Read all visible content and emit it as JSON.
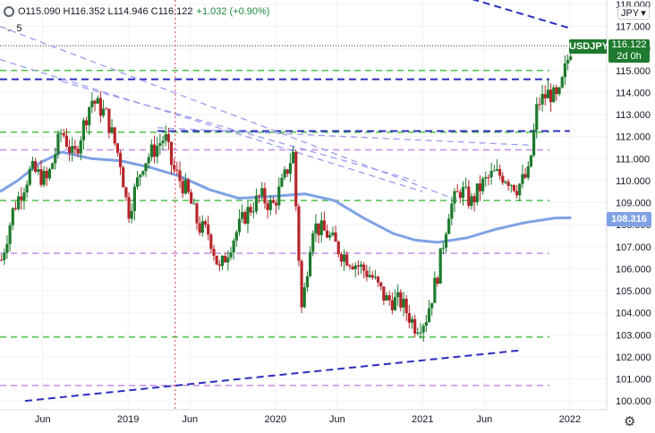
{
  "header": {
    "ohlc_text": "O115.090 H116.352 L114.946 C116.122",
    "change_text": "+1.032 (+0.90%)",
    "study_count": "5"
  },
  "currency_button": "JPY",
  "symbol_tag": "USDJPY",
  "price_tag": {
    "price": "116.122",
    "time": "2d 0h"
  },
  "ma_tag": "108.316",
  "colors": {
    "up": "#1e7a2e",
    "down": "#b7262b",
    "ma": "#7fa2e6",
    "green_level": "#4fc04a",
    "purple_level": "#c88ee8",
    "blue_line": "#2b2fbf",
    "light_blue_line": "#9b9cf0"
  },
  "chart_data": {
    "type": "candlestick",
    "symbol": "USDJPY",
    "timeframe": "weekly",
    "y_ticks": [
      "118.000",
      "117.000",
      "116.000",
      "115.000",
      "114.000",
      "113.000",
      "112.000",
      "111.000",
      "110.000",
      "109.000",
      "108.000",
      "107.000",
      "106.000",
      "105.000",
      "104.000",
      "103.000",
      "102.000",
      "101.000",
      "100.000"
    ],
    "ylim": [
      99.6,
      118.2
    ],
    "x_ticks": [
      {
        "label": "Jun",
        "t": 2018.42
      },
      {
        "label": "2019",
        "t": 2019.0
      },
      {
        "label": "Jun",
        "t": 2019.42
      },
      {
        "label": "2020",
        "t": 2020.0
      },
      {
        "label": "Jun",
        "t": 2020.42
      },
      {
        "label": "2021",
        "t": 2021.0
      },
      {
        "label": "Jun",
        "t": 2021.42
      },
      {
        "label": "2022",
        "t": 2022.0
      }
    ],
    "xlim": [
      2018.13,
      2022.25
    ],
    "last_price": 116.122,
    "moving_average_last": 108.316,
    "close_path": [
      [
        2018.14,
        106.4
      ],
      [
        2018.22,
        108.7
      ],
      [
        2018.34,
        110.5
      ],
      [
        2018.45,
        110.0
      ],
      [
        2018.55,
        112.3
      ],
      [
        2018.63,
        111.0
      ],
      [
        2018.75,
        113.7
      ],
      [
        2018.85,
        113.0
      ],
      [
        2018.95,
        110.8
      ],
      [
        2019.0,
        108.5
      ],
      [
        2019.1,
        110.8
      ],
      [
        2019.2,
        111.6
      ],
      [
        2019.25,
        112.0
      ],
      [
        2019.3,
        110.6
      ],
      [
        2019.4,
        109.5
      ],
      [
        2019.48,
        107.9
      ],
      [
        2019.55,
        107.6
      ],
      [
        2019.62,
        105.9
      ],
      [
        2019.7,
        107.2
      ],
      [
        2019.8,
        108.5
      ],
      [
        2019.9,
        109.3
      ],
      [
        2019.98,
        108.8
      ],
      [
        2020.05,
        109.9
      ],
      [
        2020.12,
        111.3
      ],
      [
        2020.18,
        104.0
      ],
      [
        2020.25,
        108.0
      ],
      [
        2020.35,
        107.6
      ],
      [
        2020.45,
        106.7
      ],
      [
        2020.55,
        106.2
      ],
      [
        2020.65,
        105.7
      ],
      [
        2020.75,
        104.6
      ],
      [
        2020.85,
        104.5
      ],
      [
        2020.95,
        103.4
      ],
      [
        2021.02,
        103.7
      ],
      [
        2021.1,
        105.7
      ],
      [
        2021.18,
        108.7
      ],
      [
        2021.26,
        109.6
      ],
      [
        2021.33,
        109.0
      ],
      [
        2021.4,
        109.8
      ],
      [
        2021.48,
        110.3
      ],
      [
        2021.56,
        110.2
      ],
      [
        2021.64,
        109.7
      ],
      [
        2021.72,
        110.3
      ],
      [
        2021.78,
        113.5
      ],
      [
        2021.86,
        114.0
      ],
      [
        2021.92,
        113.6
      ],
      [
        2021.97,
        115.1
      ],
      [
        2022.01,
        116.122
      ]
    ],
    "moving_average_path": [
      [
        2018.13,
        109.5
      ],
      [
        2018.25,
        110.0
      ],
      [
        2018.4,
        110.8
      ],
      [
        2018.55,
        111.3
      ],
      [
        2018.75,
        111.0
      ],
      [
        2018.95,
        110.9
      ],
      [
        2019.15,
        110.6
      ],
      [
        2019.35,
        110.2
      ],
      [
        2019.55,
        109.6
      ],
      [
        2019.75,
        109.2
      ],
      [
        2020.0,
        109.3
      ],
      [
        2020.2,
        109.4
      ],
      [
        2020.4,
        109.1
      ],
      [
        2020.6,
        108.3
      ],
      [
        2020.8,
        107.6
      ],
      [
        2020.95,
        107.3
      ],
      [
        2021.1,
        107.2
      ],
      [
        2021.3,
        107.4
      ],
      [
        2021.5,
        107.8
      ],
      [
        2021.7,
        108.1
      ],
      [
        2021.9,
        108.3
      ],
      [
        2022.01,
        108.316
      ]
    ],
    "horizontal_levels": [
      {
        "value": 115.0,
        "style": "green-dash"
      },
      {
        "value": 114.6,
        "style": "blue-dash"
      },
      {
        "value": 112.2,
        "style": "green-dash"
      },
      {
        "value": 111.4,
        "style": "purple-dash"
      },
      {
        "value": 109.1,
        "style": "green-dash"
      },
      {
        "value": 106.7,
        "style": "purple-dash"
      },
      {
        "value": 102.9,
        "style": "green-dash"
      },
      {
        "value": 100.7,
        "style": "purple-dash"
      }
    ],
    "trendlines": [
      {
        "from": [
          2020.35,
          120.2
        ],
        "to": [
          2022.01,
          116.9
        ],
        "style": "blue-dash"
      },
      {
        "from": [
          2019.2,
          112.25
        ],
        "to": [
          2022.0,
          112.25
        ],
        "style": "blue-dash"
      },
      {
        "from": [
          2018.3,
          100.0
        ],
        "to": [
          2021.67,
          102.3
        ],
        "style": "blue-dash"
      },
      {
        "from": [
          2018.13,
          117.0
        ],
        "to": [
          2021.2,
          109.2
        ],
        "style": "light-blue-dash"
      },
      {
        "from": [
          2018.13,
          115.5
        ],
        "to": [
          2021.0,
          109.5
        ],
        "style": "light-blue-dash"
      },
      {
        "from": [
          2018.55,
          114.5
        ],
        "to": [
          2020.95,
          110.0
        ],
        "style": "light-blue-dash"
      },
      {
        "from": [
          2019.2,
          112.4
        ],
        "to": [
          2021.75,
          111.6
        ],
        "style": "light-blue-dash"
      }
    ],
    "vertical_marker": {
      "t": 2019.32,
      "style": "red-dotted"
    }
  }
}
